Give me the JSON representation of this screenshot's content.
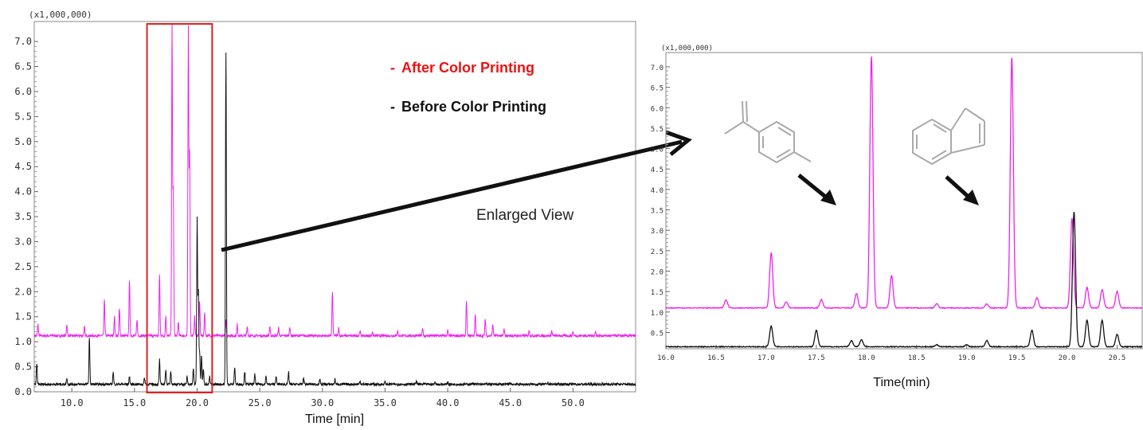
{
  "chart_data": [
    {
      "type": "line",
      "panel": "full chromatogram",
      "xlabel": "Time [min]",
      "y_multiplier": "(x1,000,000)",
      "xlim": [
        7,
        55
      ],
      "ylim": [
        0,
        7.4
      ],
      "x_ticks": [
        "10.0",
        "15.0",
        "20.0",
        "25.0",
        "30.0",
        "35.0",
        "40.0",
        "45.0",
        "50.0"
      ],
      "y_ticks": [
        "0.0",
        "0.5",
        "1.0",
        "1.5",
        "2.0",
        "2.5",
        "3.0",
        "3.5",
        "4.0",
        "4.5",
        "5.0",
        "5.5",
        "6.0",
        "6.5",
        "7.0"
      ],
      "highlight_box": {
        "x_range": [
          16.0,
          21.2
        ],
        "color": "#e02020"
      },
      "series": [
        {
          "name": "After Color Printing",
          "color": "#ee22ee",
          "baseline": 1.12,
          "peaks": [
            [
              7.3,
              1.35
            ],
            [
              9.6,
              1.35
            ],
            [
              11.0,
              1.3
            ],
            [
              12.6,
              1.85
            ],
            [
              13.4,
              1.5
            ],
            [
              13.8,
              1.65
            ],
            [
              14.6,
              2.2
            ],
            [
              15.2,
              1.45
            ],
            [
              17.0,
              2.35
            ],
            [
              17.5,
              1.5
            ],
            [
              18.0,
              7.3
            ],
            [
              18.1,
              4.0
            ],
            [
              18.5,
              1.4
            ],
            [
              19.3,
              7.25
            ],
            [
              19.4,
              4.75
            ],
            [
              19.8,
              1.5
            ],
            [
              20.2,
              1.8
            ],
            [
              20.6,
              1.6
            ],
            [
              22.3,
              1.45
            ],
            [
              23.2,
              1.35
            ],
            [
              24.0,
              1.3
            ],
            [
              25.8,
              1.3
            ],
            [
              26.5,
              1.28
            ],
            [
              27.4,
              1.3
            ],
            [
              30.8,
              2.0
            ],
            [
              31.3,
              1.28
            ],
            [
              33.0,
              1.22
            ],
            [
              34.0,
              1.2
            ],
            [
              36.0,
              1.22
            ],
            [
              38.0,
              1.28
            ],
            [
              40.0,
              1.22
            ],
            [
              41.5,
              1.8
            ],
            [
              42.2,
              1.55
            ],
            [
              43.0,
              1.45
            ],
            [
              43.6,
              1.35
            ],
            [
              44.5,
              1.25
            ],
            [
              46.5,
              1.22
            ],
            [
              48.3,
              1.22
            ],
            [
              50.0,
              1.2
            ],
            [
              51.8,
              1.2
            ]
          ]
        },
        {
          "name": "Before Color Printing",
          "color": "#111111",
          "baseline": 0.15,
          "peaks": [
            [
              7.2,
              0.55
            ],
            [
              9.6,
              0.28
            ],
            [
              11.4,
              1.1
            ],
            [
              13.3,
              0.4
            ],
            [
              14.6,
              0.3
            ],
            [
              15.8,
              0.28
            ],
            [
              17.0,
              0.65
            ],
            [
              17.5,
              0.45
            ],
            [
              17.9,
              0.42
            ],
            [
              19.2,
              0.3
            ],
            [
              19.7,
              0.45
            ],
            [
              20.0,
              3.45
            ],
            [
              20.1,
              2.0
            ],
            [
              20.2,
              0.8
            ],
            [
              20.35,
              0.75
            ],
            [
              20.5,
              0.45
            ],
            [
              21.0,
              0.3
            ],
            [
              22.3,
              6.8
            ],
            [
              23.0,
              0.5
            ],
            [
              23.8,
              0.4
            ],
            [
              24.6,
              0.35
            ],
            [
              25.5,
              0.32
            ],
            [
              26.3,
              0.32
            ],
            [
              27.3,
              0.4
            ],
            [
              28.5,
              0.28
            ],
            [
              29.8,
              0.25
            ],
            [
              31.0,
              0.25
            ],
            [
              33.0,
              0.22
            ],
            [
              35.0,
              0.2
            ],
            [
              37.5,
              0.22
            ],
            [
              39.0,
              0.2
            ],
            [
              40.0,
              0.2
            ],
            [
              42.0,
              0.18
            ],
            [
              45.0,
              0.18
            ],
            [
              48.0,
              0.18
            ]
          ]
        }
      ],
      "legend": [
        {
          "prefix": "-",
          "label": "After Color Printing",
          "color": "#ee1111"
        },
        {
          "prefix": "-",
          "label": "Before Color Printing",
          "color": "#111111"
        }
      ]
    },
    {
      "type": "line",
      "panel": "enlarged view",
      "xlabel": "Time(min)",
      "y_multiplier": "(x1,000,000)",
      "xlim": [
        16.0,
        20.75
      ],
      "ylim": [
        0.1,
        7.35
      ],
      "x_ticks": [
        "16.0",
        "16.5",
        "17.0",
        "17.5",
        "18.0",
        "18.5",
        "19.0",
        "19.5",
        "20.0",
        "20.5"
      ],
      "y_ticks": [
        "0.5",
        "1.0",
        "1.5",
        "2.0",
        "2.5",
        "3.0",
        "3.5",
        "4.0",
        "4.5",
        "5.0",
        "5.5",
        "6.0",
        "6.5",
        "7.0"
      ],
      "series": [
        {
          "name": "After Color Printing",
          "color": "#ee22ee",
          "baseline": 1.1,
          "peaks": [
            [
              16.6,
              1.3
            ],
            [
              17.05,
              2.45
            ],
            [
              17.2,
              1.25
            ],
            [
              17.55,
              1.3
            ],
            [
              17.9,
              1.45
            ],
            [
              18.05,
              7.25
            ],
            [
              18.25,
              1.9
            ],
            [
              18.7,
              1.2
            ],
            [
              19.2,
              1.2
            ],
            [
              19.45,
              7.25
            ],
            [
              19.7,
              1.35
            ],
            [
              20.05,
              3.3
            ],
            [
              20.2,
              1.6
            ],
            [
              20.35,
              1.55
            ],
            [
              20.5,
              1.5
            ]
          ]
        },
        {
          "name": "Before Color Printing",
          "color": "#111111",
          "baseline": 0.15,
          "peaks": [
            [
              17.05,
              0.65
            ],
            [
              17.5,
              0.55
            ],
            [
              17.85,
              0.3
            ],
            [
              17.95,
              0.32
            ],
            [
              18.7,
              0.2
            ],
            [
              19.0,
              0.2
            ],
            [
              19.2,
              0.3
            ],
            [
              19.65,
              0.55
            ],
            [
              20.07,
              3.45
            ],
            [
              20.2,
              0.8
            ],
            [
              20.35,
              0.8
            ],
            [
              20.5,
              0.45
            ]
          ]
        }
      ],
      "markers": [
        {
          "label": "structure 1 → peak at 18.05",
          "icon": "alkenyl-toluene-structure-icon"
        },
        {
          "label": "structure 2 → peak at 19.45",
          "icon": "indene-structure-icon"
        }
      ]
    }
  ],
  "annotation": {
    "enlarged_label": "Enlarged View",
    "arrow_color": "#111111"
  }
}
